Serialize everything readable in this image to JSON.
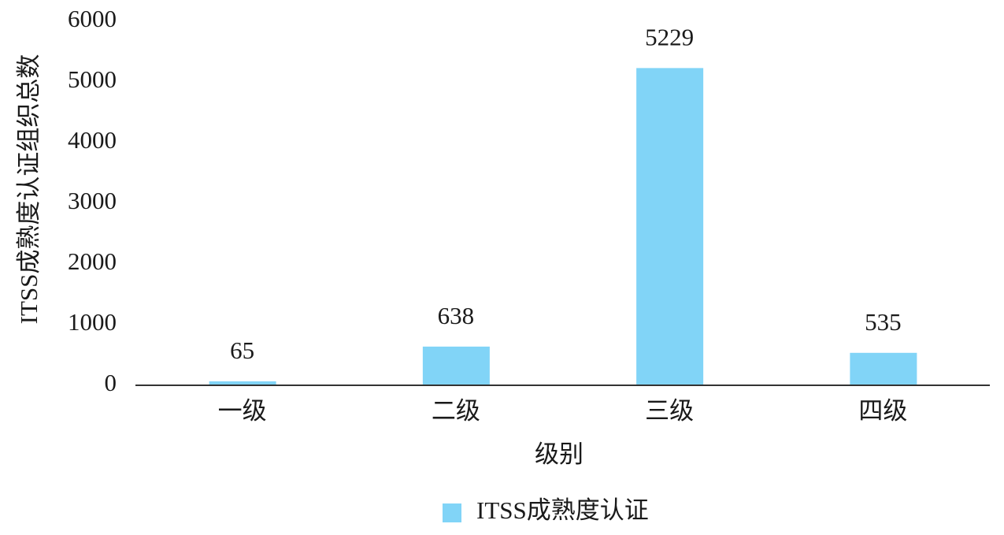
{
  "chart_data": {
    "type": "bar",
    "x_label": "级别",
    "y_label": "ITSS成熟度认证组织总数",
    "categories": [
      "一级",
      "二级",
      "三级",
      "四级"
    ],
    "series": [
      {
        "name": "ITSS成熟度认证",
        "color": "#81d4f7",
        "values": [
          65,
          638,
          5229,
          535
        ]
      }
    ],
    "ylim": [
      0,
      6000
    ],
    "yticks": [
      0,
      1000,
      2000,
      3000,
      4000,
      5000,
      6000
    ],
    "grid": false,
    "legend": "bottom"
  }
}
